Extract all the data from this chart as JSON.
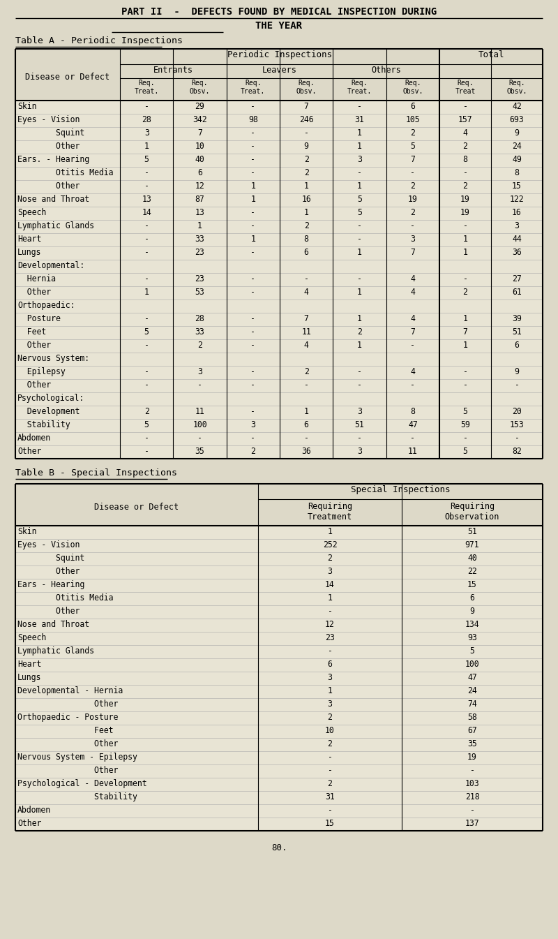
{
  "title_line1": "PART II  -  DEFECTS FOUND BY MEDICAL INSPECTION DURING",
  "title_line2": "THE YEAR",
  "table_a_title": "Table A - Periodic Inspections",
  "table_b_title": "Table B - Special Inspections",
  "bg_color": "#ddd9c8",
  "table_bg": "#e8e4d4",
  "header_bg": "#ddd9c8",
  "page_number": "80.",
  "table_a_rows": [
    {
      "label": "Skin",
      "indent": 0,
      "vals": [
        "-",
        "29",
        "-",
        "7",
        "-",
        "6",
        "-",
        "42"
      ]
    },
    {
      "label": "Eyes - Vision",
      "indent": 0,
      "vals": [
        "28",
        "342",
        "98",
        "246",
        "31",
        "105",
        "157",
        "693"
      ]
    },
    {
      "label": "        Squint",
      "indent": 0,
      "vals": [
        "3",
        "7",
        "-",
        "-",
        "1",
        "2",
        "4",
        "9"
      ]
    },
    {
      "label": "        Other",
      "indent": 0,
      "vals": [
        "1",
        "10",
        "-",
        "9",
        "1",
        "5",
        "2",
        "24"
      ]
    },
    {
      "label": "Ears. - Hearing",
      "indent": 0,
      "vals": [
        "5",
        "40",
        "-",
        "2",
        "3",
        "7",
        "8",
        "49"
      ]
    },
    {
      "label": "        Otitis Media",
      "indent": 0,
      "vals": [
        "-",
        "6",
        "-",
        "2",
        "-",
        "-",
        "-",
        "8"
      ]
    },
    {
      "label": "        Other",
      "indent": 0,
      "vals": [
        "-",
        "12",
        "1",
        "1",
        "1",
        "2",
        "2",
        "15"
      ]
    },
    {
      "label": "Nose and Throat",
      "indent": 0,
      "vals": [
        "13",
        "87",
        "1",
        "16",
        "5",
        "19",
        "19",
        "122"
      ]
    },
    {
      "label": "Speech",
      "indent": 0,
      "vals": [
        "14",
        "13",
        "-",
        "1",
        "5",
        "2",
        "19",
        "16"
      ]
    },
    {
      "label": "Lymphatic Glands",
      "indent": 0,
      "vals": [
        "-",
        "1",
        "-",
        "2",
        "-",
        "-",
        "-",
        "3"
      ]
    },
    {
      "label": "Heart",
      "indent": 0,
      "vals": [
        "-",
        "33",
        "1",
        "8",
        "-",
        "3",
        "1",
        "44"
      ]
    },
    {
      "label": "Lungs",
      "indent": 0,
      "vals": [
        "-",
        "23",
        "-",
        "6",
        "1",
        "7",
        "1",
        "36"
      ]
    },
    {
      "label": "Developmental:",
      "indent": 0,
      "vals": [
        "",
        "",
        "",
        "",
        "",
        "",
        "",
        ""
      ]
    },
    {
      "label": "  Hernia",
      "indent": 0,
      "vals": [
        "-",
        "23",
        "-",
        "-",
        "-",
        "4",
        "-",
        "27"
      ]
    },
    {
      "label": "  Other",
      "indent": 0,
      "vals": [
        "1",
        "53",
        "-",
        "4",
        "1",
        "4",
        "2",
        "61"
      ]
    },
    {
      "label": "Orthopaedic:",
      "indent": 0,
      "vals": [
        "",
        "",
        "",
        "",
        "",
        "",
        "",
        ""
      ]
    },
    {
      "label": "  Posture",
      "indent": 0,
      "vals": [
        "-",
        "28",
        "-",
        "7",
        "1",
        "4",
        "1",
        "39"
      ]
    },
    {
      "label": "  Feet",
      "indent": 0,
      "vals": [
        "5",
        "33",
        "-",
        "11",
        "2",
        "7",
        "7",
        "51"
      ]
    },
    {
      "label": "  Other",
      "indent": 0,
      "vals": [
        "-",
        "2",
        "-",
        "4",
        "1",
        "-",
        "1",
        "6"
      ]
    },
    {
      "label": "Nervous System:",
      "indent": 0,
      "vals": [
        "",
        "",
        "",
        "",
        "",
        "",
        "",
        ""
      ]
    },
    {
      "label": "  Epilepsy",
      "indent": 0,
      "vals": [
        "-",
        "3",
        "-",
        "2",
        "-",
        "4",
        "-",
        "9"
      ]
    },
    {
      "label": "  Other",
      "indent": 0,
      "vals": [
        "-",
        "-",
        "-",
        "-",
        "-",
        "-",
        "-",
        "-"
      ]
    },
    {
      "label": "Psychological:",
      "indent": 0,
      "vals": [
        "",
        "",
        "",
        "",
        "",
        "",
        "",
        ""
      ]
    },
    {
      "label": "  Development",
      "indent": 0,
      "vals": [
        "2",
        "11",
        "-",
        "1",
        "3",
        "8",
        "5",
        "20"
      ]
    },
    {
      "label": "  Stability",
      "indent": 0,
      "vals": [
        "5",
        "100",
        "3",
        "6",
        "51",
        "47",
        "59",
        "153"
      ]
    },
    {
      "label": "Abdomen",
      "indent": 0,
      "vals": [
        "-",
        "-",
        "-",
        "-",
        "-",
        "-",
        "-",
        "-"
      ]
    },
    {
      "label": "Other",
      "indent": 0,
      "vals": [
        "-",
        "35",
        "2",
        "36",
        "3",
        "11",
        "5",
        "82"
      ]
    }
  ],
  "table_b_rows": [
    {
      "label": "Skin",
      "indent": 0,
      "vals": [
        "1",
        "51"
      ]
    },
    {
      "label": "Eyes - Vision",
      "indent": 0,
      "vals": [
        "252",
        "971"
      ]
    },
    {
      "label": "        Squint",
      "indent": 0,
      "vals": [
        "2",
        "40"
      ]
    },
    {
      "label": "        Other",
      "indent": 0,
      "vals": [
        "3",
        "22"
      ]
    },
    {
      "label": "Ears - Hearing",
      "indent": 0,
      "vals": [
        "14",
        "15"
      ]
    },
    {
      "label": "        Otitis Media",
      "indent": 0,
      "vals": [
        "1",
        "6"
      ]
    },
    {
      "label": "        Other",
      "indent": 0,
      "vals": [
        "-",
        "9"
      ]
    },
    {
      "label": "Nose and Throat",
      "indent": 0,
      "vals": [
        "12",
        "134"
      ]
    },
    {
      "label": "Speech",
      "indent": 0,
      "vals": [
        "23",
        "93"
      ]
    },
    {
      "label": "Lymphatic Glands",
      "indent": 0,
      "vals": [
        "-",
        "5"
      ]
    },
    {
      "label": "Heart",
      "indent": 0,
      "vals": [
        "6",
        "100"
      ]
    },
    {
      "label": "Lungs",
      "indent": 0,
      "vals": [
        "3",
        "47"
      ]
    },
    {
      "label": "Developmental - Hernia",
      "indent": 0,
      "vals": [
        "1",
        "24"
      ]
    },
    {
      "label": "                Other",
      "indent": 0,
      "vals": [
        "3",
        "74"
      ]
    },
    {
      "label": "Orthopaedic - Posture",
      "indent": 0,
      "vals": [
        "2",
        "58"
      ]
    },
    {
      "label": "                Feet",
      "indent": 0,
      "vals": [
        "10",
        "67"
      ]
    },
    {
      "label": "                Other",
      "indent": 0,
      "vals": [
        "2",
        "35"
      ]
    },
    {
      "label": "Nervous System - Epilepsy",
      "indent": 0,
      "vals": [
        "-",
        "19"
      ]
    },
    {
      "label": "                Other",
      "indent": 0,
      "vals": [
        "-",
        "-"
      ]
    },
    {
      "label": "Psychological - Development",
      "indent": 0,
      "vals": [
        "2",
        "103"
      ]
    },
    {
      "label": "                Stability",
      "indent": 0,
      "vals": [
        "31",
        "218"
      ]
    },
    {
      "label": "Abdomen",
      "indent": 0,
      "vals": [
        "-",
        "-"
      ]
    },
    {
      "label": "Other",
      "indent": 0,
      "vals": [
        "15",
        "137"
      ]
    }
  ]
}
